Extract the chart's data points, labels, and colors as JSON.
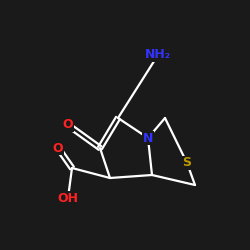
{
  "bg_color": "#1a1a1a",
  "atom_colors": {
    "C": "#ffffff",
    "N": "#3333ff",
    "O": "#ff2222",
    "S": "#bb9900",
    "H": "#ffffff"
  }
}
